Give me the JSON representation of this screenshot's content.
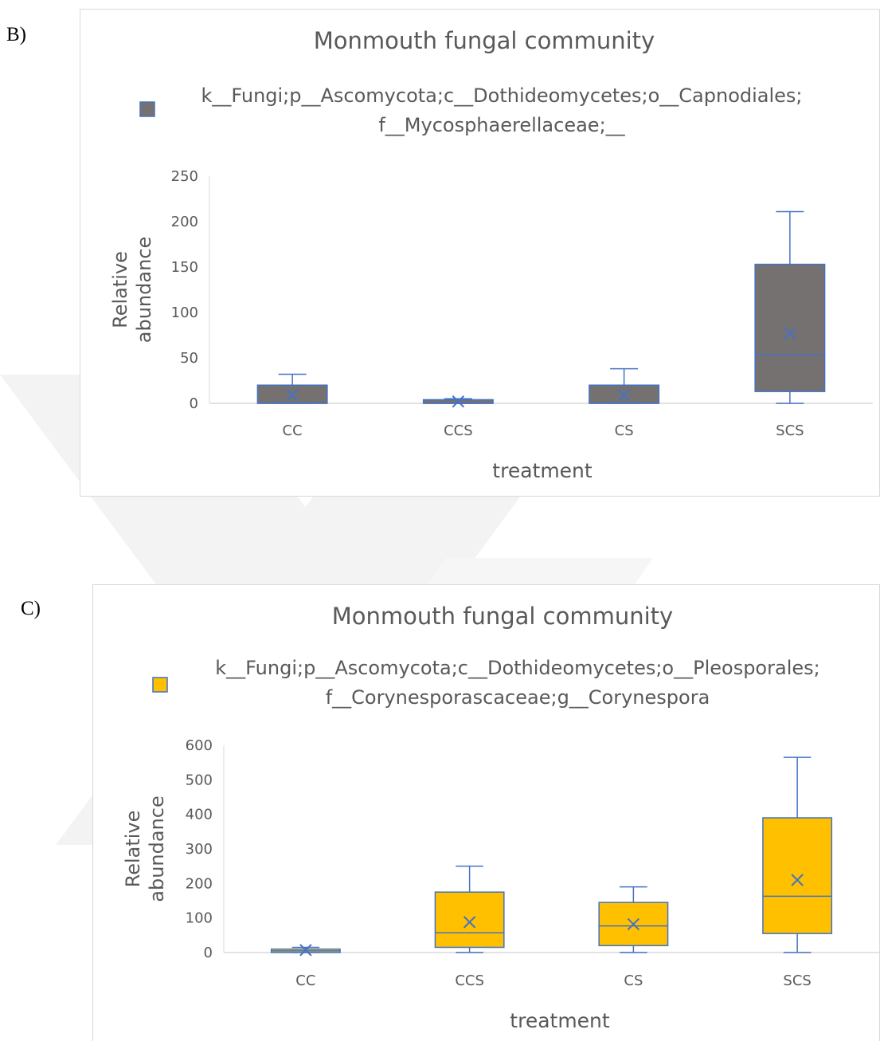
{
  "panels": [
    {
      "letter": "B)",
      "chart_data": {
        "type": "box",
        "title": "Monmouth fungal community",
        "legend": {
          "lines": [
            "k__Fungi;p__Ascomycota;c__Dothideomycetes;o__Capnodiales;",
            "f__Mycosphaerellaceae;__"
          ],
          "position": "top"
        },
        "xlabel": "treatment",
        "ylabel_lines": [
          "Relative",
          "abundance"
        ],
        "ylim": [
          0,
          250
        ],
        "yticks": [
          0,
          50,
          100,
          150,
          200,
          250
        ],
        "categories": [
          "CC",
          "CCS",
          "CS",
          "SCS"
        ],
        "series": [
          {
            "color": "#767171",
            "boxes": [
              {
                "min": 0,
                "q1": 0,
                "median": 0,
                "q3": 20,
                "max": 32,
                "mean": 9
              },
              {
                "min": 0,
                "q1": 0,
                "median": 0,
                "q3": 4,
                "max": 5,
                "mean": 2
              },
              {
                "min": 0,
                "q1": 0,
                "median": 0,
                "q3": 20,
                "max": 38,
                "mean": 9
              },
              {
                "min": 0,
                "q1": 13,
                "median": 53,
                "q3": 153,
                "max": 211,
                "mean": 77
              }
            ]
          }
        ],
        "grid": false
      }
    },
    {
      "letter": "C)",
      "chart_data": {
        "type": "box",
        "title": "Monmouth fungal community",
        "legend": {
          "lines": [
            "k__Fungi;p__Ascomycota;c__Dothideomycetes;o__Pleosporales;",
            "f__Corynesporascaceae;g__Corynespora"
          ],
          "position": "top"
        },
        "xlabel": "treatment",
        "ylabel_lines": [
          "Relative",
          "abundance"
        ],
        "ylim": [
          0,
          600
        ],
        "yticks": [
          0,
          100,
          200,
          300,
          400,
          500,
          600
        ],
        "categories": [
          "CC",
          "CCS",
          "CS",
          "SCS"
        ],
        "series": [
          {
            "color": "#ffc000",
            "boxes": [
              {
                "min": 0,
                "q1": 0,
                "median": 5,
                "q3": 10,
                "max": 15,
                "mean": 7
              },
              {
                "min": 0,
                "q1": 15,
                "median": 57,
                "q3": 175,
                "max": 250,
                "mean": 88
              },
              {
                "min": 0,
                "q1": 20,
                "median": 77,
                "q3": 145,
                "max": 190,
                "mean": 82
              },
              {
                "min": 0,
                "q1": 55,
                "median": 163,
                "q3": 390,
                "max": 565,
                "mean": 210
              }
            ]
          }
        ],
        "grid": false
      }
    }
  ]
}
